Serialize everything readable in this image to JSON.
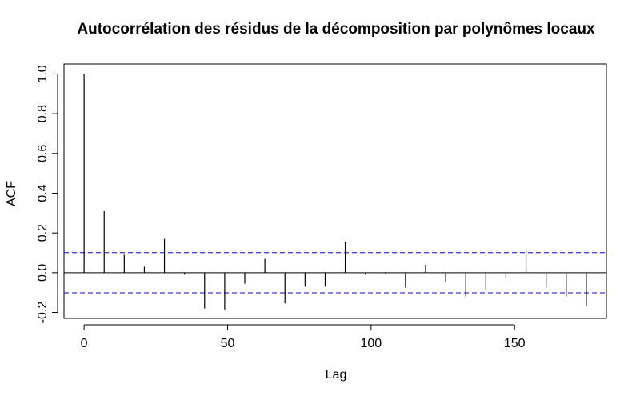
{
  "chart_data": {
    "type": "bar",
    "title": "Autocorrélation des résidus de la décomposition par polynômes locaux",
    "xlabel": "Lag",
    "ylabel": "ACF",
    "xlim": [
      -7,
      182
    ],
    "ylim": [
      -0.23,
      1.05
    ],
    "x_ticks": [
      0,
      50,
      100,
      150
    ],
    "x_tick_labels": [
      "0",
      "50",
      "100",
      "150"
    ],
    "y_ticks": [
      -0.2,
      0.0,
      0.2,
      0.4,
      0.6,
      0.8,
      1.0
    ],
    "y_tick_labels": [
      "-0.2",
      "0.0",
      "0.2",
      "0.4",
      "0.6",
      "0.8",
      "1.0"
    ],
    "grid": false,
    "confidence_bounds": [
      0.101,
      -0.101
    ],
    "colors": {
      "bars": "#000000",
      "confidence_bounds": "#0000ff",
      "axes": "#000000"
    },
    "lags": [
      0,
      7,
      14,
      21,
      28,
      35,
      42,
      49,
      56,
      63,
      70,
      77,
      84,
      91,
      98,
      105,
      112,
      119,
      126,
      133,
      140,
      147,
      154,
      161,
      168,
      175
    ],
    "values": [
      1.0,
      0.31,
      0.09,
      0.03,
      0.17,
      -0.01,
      -0.18,
      -0.185,
      -0.055,
      0.07,
      -0.155,
      -0.07,
      -0.07,
      0.155,
      -0.01,
      -0.005,
      -0.075,
      0.04,
      -0.045,
      -0.12,
      -0.085,
      -0.03,
      0.11,
      -0.075,
      -0.12,
      -0.17
    ]
  }
}
